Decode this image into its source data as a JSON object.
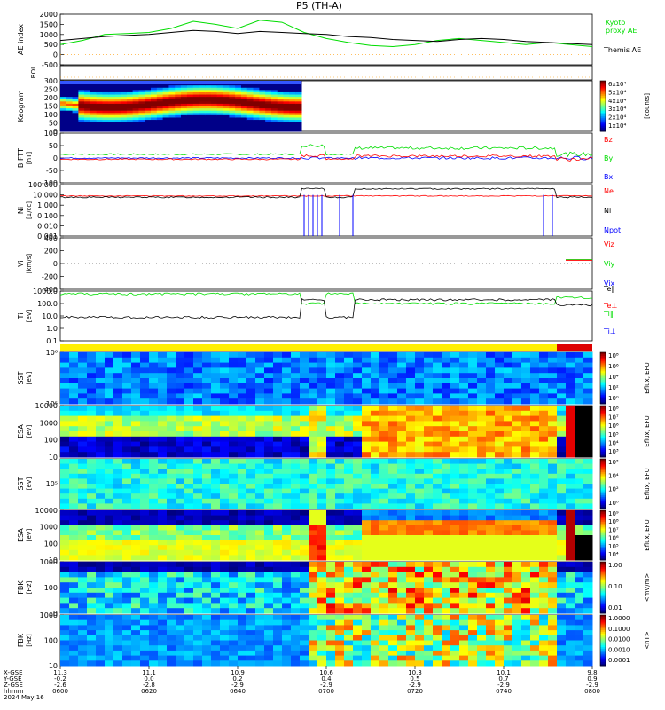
{
  "title": "P5 (TH-A)",
  "date_label": "2024 May 16",
  "footer_labels": [
    "X-GSE",
    "Y-GSE",
    "Z-GSE",
    "hhmm"
  ],
  "footer_columns": [
    {
      "x": "11.3",
      "y": "-0.2",
      "z": "-2.6",
      "t": "0600"
    },
    {
      "x": "11.1",
      "y": "0.0",
      "z": "-2.8",
      "t": "0620"
    },
    {
      "x": "10.9",
      "y": "0.2",
      "z": "-2.9",
      "t": "0640"
    },
    {
      "x": "10.6",
      "y": "0.4",
      "z": "-2.9",
      "t": "0700"
    },
    {
      "x": "10.3",
      "y": "0.5",
      "z": "-2.9",
      "t": "0720"
    },
    {
      "x": "10.1",
      "y": "0.7",
      "z": "-2.9",
      "t": "0740"
    },
    {
      "x": "9.8",
      "y": "0.9",
      "z": "-2.9",
      "t": "0800"
    }
  ],
  "colors": {
    "green": "#00dd00",
    "red": "#ff0000",
    "blue": "#0000ff",
    "black": "#000000",
    "orange": "#ff9900"
  },
  "chart_data": [
    {
      "type": "line",
      "id": "ae",
      "ylabel": "AE index",
      "ylim": [
        -500,
        2000
      ],
      "ticks": [
        "2000",
        "1500",
        "1000",
        "500",
        "0",
        "-500"
      ],
      "legend": [
        {
          "text": "Kyoto",
          "color": "green"
        },
        {
          "text": "proxy AE",
          "color": "green"
        },
        {
          "text": "Themis AE",
          "color": "black"
        }
      ],
      "series": [
        {
          "name": "Kyoto proxy AE",
          "color": "green",
          "x": [
            0,
            5,
            10,
            15,
            20,
            25,
            30,
            35,
            40,
            45,
            50,
            55,
            60,
            65,
            70,
            75,
            80,
            85,
            90,
            95,
            100,
            105,
            110,
            115,
            120
          ],
          "values": [
            500,
            700,
            1000,
            1050,
            1100,
            1300,
            1650,
            1500,
            1300,
            1700,
            1600,
            1100,
            800,
            600,
            450,
            400,
            500,
            700,
            800,
            700,
            600,
            500,
            600,
            500,
            400
          ]
        },
        {
          "name": "Themis AE",
          "color": "black",
          "x": [
            0,
            5,
            10,
            15,
            20,
            25,
            30,
            35,
            40,
            45,
            50,
            55,
            60,
            65,
            70,
            75,
            80,
            85,
            90,
            95,
            100,
            105,
            110,
            115,
            120
          ],
          "values": [
            700,
            800,
            900,
            950,
            1000,
            1100,
            1200,
            1150,
            1050,
            1150,
            1100,
            1050,
            1000,
            900,
            850,
            750,
            700,
            650,
            750,
            800,
            750,
            650,
            600,
            550,
            500
          ]
        }
      ]
    },
    {
      "type": "line",
      "id": "roi",
      "ylabel": "ROI",
      "ticks": []
    },
    {
      "type": "heatmap",
      "id": "keogram",
      "ylabel": "Keogram",
      "ylim": [
        0,
        300
      ],
      "ticks": [
        "300",
        "250",
        "200",
        "150",
        "100",
        "50",
        "0"
      ],
      "colorbar": {
        "ticks": [
          "6x10⁴",
          "5x10⁴",
          "4x10⁴",
          "3x10⁴",
          "2x10⁴",
          "1x10⁴"
        ],
        "label": "[counts]"
      }
    },
    {
      "type": "line",
      "id": "bfield",
      "ylabel": "B FTT",
      "ylabel2": "[nT]",
      "ylim": [
        -100,
        100
      ],
      "ticks": [
        "100",
        "50",
        "0",
        "-50",
        "-100"
      ],
      "legend": [
        {
          "text": "Bz",
          "color": "red"
        },
        {
          "text": "By",
          "color": "green"
        },
        {
          "text": "Bx",
          "color": "blue"
        }
      ]
    },
    {
      "type": "line",
      "id": "density",
      "ylabel": "Ni",
      "ylabel2": "[1/cc]",
      "ylim": [
        0.001,
        100
      ],
      "ticks": [
        "100.000",
        "10.000",
        "1.000",
        "0.100",
        "0.010",
        "0.001"
      ],
      "legend": [
        {
          "text": "Ne",
          "color": "red"
        },
        {
          "text": "Ni",
          "color": "black"
        },
        {
          "text": "Npot",
          "color": "blue"
        }
      ]
    },
    {
      "type": "line",
      "id": "velocity",
      "ylabel": "Vi",
      "ylabel2": "[km/s]",
      "ylim": [
        -400,
        400
      ],
      "ticks": [
        "400",
        "200",
        "0",
        "-200",
        "-400"
      ],
      "legend": [
        {
          "text": "Viz",
          "color": "red"
        },
        {
          "text": "Viy",
          "color": "green"
        },
        {
          "text": "Vix",
          "color": "blue"
        }
      ]
    },
    {
      "type": "line",
      "id": "temp",
      "ylabel": "Ti",
      "ylabel2": "[eV]",
      "ylim": [
        0.1,
        1000
      ],
      "ticks": [
        "1000.0",
        "100.0",
        "10.0",
        "1.0",
        "0.1"
      ],
      "legend": [
        {
          "text": "Te‖",
          "color": "black"
        },
        {
          "text": "Te⊥",
          "color": "red"
        },
        {
          "text": "Ti‖",
          "color": "green"
        },
        {
          "text": "Ti⊥",
          "color": "blue"
        }
      ]
    },
    {
      "type": "heatmap",
      "id": "sst-ion",
      "ylabel": "SST",
      "ylabel2": "[eV]",
      "ticks": [
        "10⁶",
        "10⁵"
      ],
      "colorbar": {
        "ticks": [
          "10⁸",
          "10⁶",
          "10⁴",
          "10²",
          "10⁰"
        ],
        "label": "Eflux, EFU"
      }
    },
    {
      "type": "heatmap",
      "id": "esa-ion",
      "ylabel": "ESA",
      "ylabel2": "[eV]",
      "ticks": [
        "10000",
        "1000",
        "100",
        "10"
      ],
      "colorbar": {
        "ticks": [
          "10⁸",
          "10⁷",
          "10⁶",
          "10⁵",
          "10⁴",
          "10³"
        ],
        "label": "Eflux, EFU"
      }
    },
    {
      "type": "heatmap",
      "id": "sst-elec",
      "ylabel": "SST",
      "ylabel2": "[eV]",
      "ticks": [
        "10⁵"
      ],
      "colorbar": {
        "ticks": [
          "10⁶",
          "10⁴",
          "10²",
          "10⁰"
        ],
        "label": "Eflux, EFU"
      }
    },
    {
      "type": "heatmap",
      "id": "esa-elec",
      "ylabel": "ESA",
      "ylabel2": "[eV]",
      "ticks": [
        "10000",
        "1000",
        "100",
        "10"
      ],
      "colorbar": {
        "ticks": [
          "10⁹",
          "10⁸",
          "10⁷",
          "10⁶",
          "10⁵",
          "10⁴"
        ],
        "label": "Eflux, EFU"
      }
    },
    {
      "type": "heatmap",
      "id": "fbk-e",
      "ylabel": "FBK",
      "ylabel2": "[Hz]",
      "ticks": [
        "1000",
        "100",
        "10"
      ],
      "colorbar": {
        "ticks": [
          "1.00",
          "0.10",
          "0.01"
        ],
        "label": "<mV/m>"
      }
    },
    {
      "type": "heatmap",
      "id": "fbk-b",
      "ylabel": "FBK",
      "ylabel2": "[Hz]",
      "ticks": [
        "1000",
        "100",
        "10"
      ],
      "colorbar": {
        "ticks": [
          "1.0000",
          "0.1000",
          "0.0100",
          "0.0010",
          "0.0001"
        ],
        "label": "<nT>"
      }
    }
  ]
}
